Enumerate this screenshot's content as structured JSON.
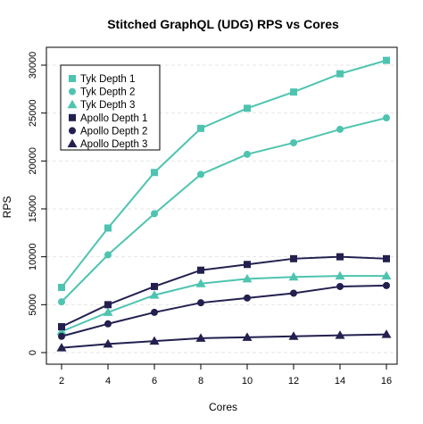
{
  "chart_data": {
    "type": "line",
    "title": "Stitched GraphQL (UDG) RPS vs Cores",
    "xlabel": "Cores",
    "ylabel": "RPS",
    "x": [
      2,
      4,
      6,
      8,
      10,
      12,
      14,
      16
    ],
    "xlim": [
      2,
      16
    ],
    "ylim": [
      0,
      30500
    ],
    "xticks": [
      2,
      4,
      6,
      8,
      10,
      12,
      14,
      16
    ],
    "yticks": [
      0,
      5000,
      10000,
      15000,
      20000,
      25000,
      30000
    ],
    "grid": "horizontal-dashed",
    "legend_position": "top-left",
    "series": [
      {
        "name": "Tyk Depth 1",
        "marker": "square",
        "color": "#4ec4b0",
        "values": [
          6800,
          13000,
          18800,
          23400,
          25500,
          27200,
          29100,
          30500
        ]
      },
      {
        "name": "Tyk Depth 2",
        "marker": "circle",
        "color": "#4ec4b0",
        "values": [
          5300,
          10200,
          14500,
          18600,
          20700,
          21900,
          23300,
          24500
        ]
      },
      {
        "name": "Tyk Depth 3",
        "marker": "triangle",
        "color": "#4ec4b0",
        "values": [
          2200,
          4200,
          6000,
          7200,
          7700,
          7900,
          8000,
          8000
        ]
      },
      {
        "name": "Apollo Depth 1",
        "marker": "square",
        "color": "#23204f",
        "values": [
          2700,
          5000,
          6900,
          8600,
          9200,
          9800,
          10000,
          9800
        ]
      },
      {
        "name": "Apollo Depth 2",
        "marker": "circle",
        "color": "#23204f",
        "values": [
          1700,
          3000,
          4200,
          5200,
          5700,
          6200,
          6900,
          7000
        ]
      },
      {
        "name": "Apollo Depth 3",
        "marker": "triangle",
        "color": "#23204f",
        "values": [
          500,
          900,
          1200,
          1500,
          1600,
          1700,
          1800,
          1900
        ]
      }
    ]
  }
}
